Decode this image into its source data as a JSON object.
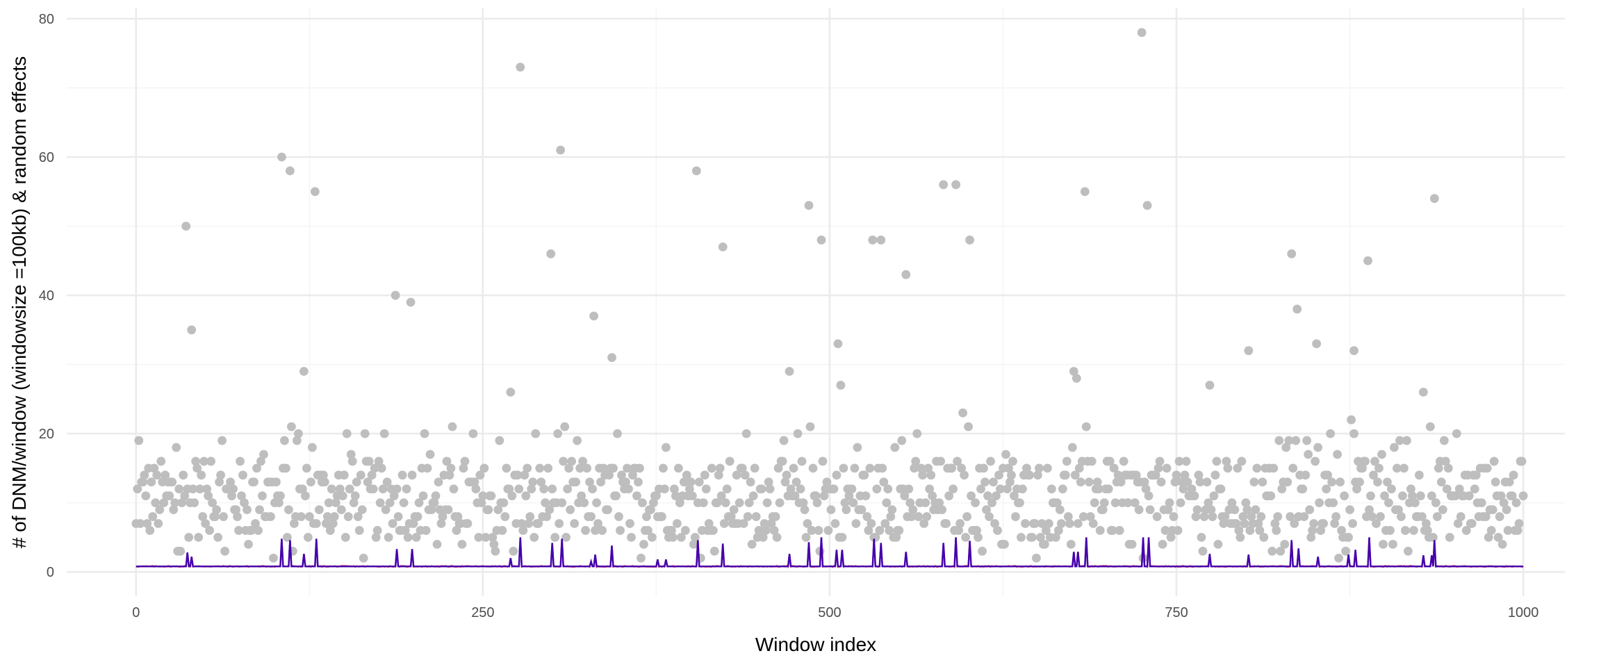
{
  "chart_data": {
    "type": "scatter",
    "title": "",
    "xlabel": "Window index",
    "ylabel": "# of DNM/window (windowsize =100kb) & random effects",
    "xlim": [
      -50,
      1030
    ],
    "ylim": [
      -3.5,
      81.5
    ],
    "x_ticks": [
      0,
      250,
      500,
      750,
      1000
    ],
    "y_ticks": [
      0,
      20,
      40,
      60,
      80
    ],
    "x_tick_labels": [
      "0",
      "250",
      "500",
      "750",
      "1000"
    ],
    "y_tick_labels": [
      "0",
      "20",
      "40",
      "60",
      "80"
    ],
    "grid": true,
    "legend": "none",
    "colors": {
      "points": "#bebebe",
      "random_effect_line_1": "#ff5a6e",
      "random_effect_line_2": "#0000dd",
      "overlap_line": "#800080",
      "grid_major": "#ebebeb",
      "grid_minor": "#f5f5f5"
    },
    "outliers": [
      {
        "x": 36,
        "y": 50
      },
      {
        "x": 40,
        "y": 35
      },
      {
        "x": 105,
        "y": 60
      },
      {
        "x": 111,
        "y": 58
      },
      {
        "x": 121,
        "y": 29
      },
      {
        "x": 129,
        "y": 55
      },
      {
        "x": 187,
        "y": 40
      },
      {
        "x": 198,
        "y": 39
      },
      {
        "x": 270,
        "y": 26
      },
      {
        "x": 277,
        "y": 73
      },
      {
        "x": 299,
        "y": 46
      },
      {
        "x": 306,
        "y": 61
      },
      {
        "x": 330,
        "y": 37
      },
      {
        "x": 343,
        "y": 31
      },
      {
        "x": 404,
        "y": 58
      },
      {
        "x": 423,
        "y": 47
      },
      {
        "x": 471,
        "y": 29
      },
      {
        "x": 485,
        "y": 53
      },
      {
        "x": 494,
        "y": 48
      },
      {
        "x": 506,
        "y": 33
      },
      {
        "x": 508,
        "y": 27
      },
      {
        "x": 531,
        "y": 48
      },
      {
        "x": 537,
        "y": 48
      },
      {
        "x": 555,
        "y": 43
      },
      {
        "x": 582,
        "y": 56
      },
      {
        "x": 591,
        "y": 56
      },
      {
        "x": 601,
        "y": 48
      },
      {
        "x": 596,
        "y": 23
      },
      {
        "x": 676,
        "y": 29
      },
      {
        "x": 678,
        "y": 28
      },
      {
        "x": 684,
        "y": 55
      },
      {
        "x": 725,
        "y": 78
      },
      {
        "x": 729,
        "y": 53
      },
      {
        "x": 774,
        "y": 27
      },
      {
        "x": 802,
        "y": 32
      },
      {
        "x": 833,
        "y": 46
      },
      {
        "x": 837,
        "y": 38
      },
      {
        "x": 851,
        "y": 33
      },
      {
        "x": 876,
        "y": 22
      },
      {
        "x": 878,
        "y": 20
      },
      {
        "x": 878,
        "y": 32
      },
      {
        "x": 888,
        "y": 45
      },
      {
        "x": 911,
        "y": 19
      },
      {
        "x": 928,
        "y": 26
      },
      {
        "x": 933,
        "y": 21
      },
      {
        "x": 936,
        "y": 54
      }
    ],
    "baseline_points_note_free": true,
    "baseline_range": [
      2,
      20
    ],
    "n_windows": 1000,
    "line_baseline": 0.8,
    "spikes": [
      {
        "x": 37,
        "y": 2.8
      },
      {
        "x": 40,
        "y": 2.2
      },
      {
        "x": 105,
        "y": 4.8
      },
      {
        "x": 111,
        "y": 4.6
      },
      {
        "x": 121,
        "y": 2.6
      },
      {
        "x": 130,
        "y": 4.8
      },
      {
        "x": 188,
        "y": 3.3
      },
      {
        "x": 199,
        "y": 3.3
      },
      {
        "x": 270,
        "y": 2.0
      },
      {
        "x": 277,
        "y": 5.0
      },
      {
        "x": 300,
        "y": 4.2
      },
      {
        "x": 307,
        "y": 4.8
      },
      {
        "x": 328,
        "y": 1.5
      },
      {
        "x": 331,
        "y": 2.5
      },
      {
        "x": 343,
        "y": 3.8
      },
      {
        "x": 376,
        "y": 1.8
      },
      {
        "x": 382,
        "y": 1.8
      },
      {
        "x": 405,
        "y": 4.6
      },
      {
        "x": 423,
        "y": 4.1
      },
      {
        "x": 471,
        "y": 2.6
      },
      {
        "x": 485,
        "y": 4.3
      },
      {
        "x": 494,
        "y": 5.0
      },
      {
        "x": 505,
        "y": 3.2
      },
      {
        "x": 509,
        "y": 3.2
      },
      {
        "x": 532,
        "y": 4.8
      },
      {
        "x": 537,
        "y": 4.2
      },
      {
        "x": 555,
        "y": 2.9
      },
      {
        "x": 582,
        "y": 4.2
      },
      {
        "x": 591,
        "y": 5.0
      },
      {
        "x": 601,
        "y": 4.5
      },
      {
        "x": 676,
        "y": 2.9
      },
      {
        "x": 679,
        "y": 2.9
      },
      {
        "x": 685,
        "y": 5.0
      },
      {
        "x": 726,
        "y": 5.0
      },
      {
        "x": 730,
        "y": 5.0
      },
      {
        "x": 774,
        "y": 2.6
      },
      {
        "x": 802,
        "y": 2.5
      },
      {
        "x": 833,
        "y": 4.6
      },
      {
        "x": 838,
        "y": 3.4
      },
      {
        "x": 852,
        "y": 2.2
      },
      {
        "x": 874,
        "y": 2.5
      },
      {
        "x": 879,
        "y": 3.2
      },
      {
        "x": 889,
        "y": 5.0
      },
      {
        "x": 928,
        "y": 2.4
      },
      {
        "x": 934,
        "y": 2.4
      },
      {
        "x": 936,
        "y": 4.6
      }
    ]
  }
}
